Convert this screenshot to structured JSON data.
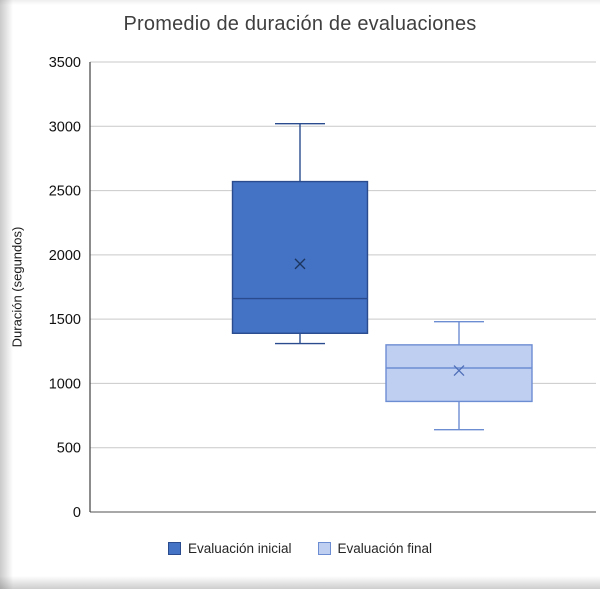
{
  "chart_data": {
    "type": "boxplot",
    "title": "Promedio de duración de evaluaciones",
    "ylabel": "Duración (segundos)",
    "ylim": [
      0,
      3500
    ],
    "ytick_step": 500,
    "grid": true,
    "legend_position": "bottom",
    "series": [
      {
        "name": "Evaluación inicial",
        "min": 1310,
        "q1": 1390,
        "median": 1660,
        "mean": 1930,
        "q3": 2570,
        "max": 3020,
        "fill": "#4472C4",
        "stroke": "#2A4C8F",
        "marker": "#1C355F"
      },
      {
        "name": "Evaluación final",
        "min": 640,
        "q1": 860,
        "median": 1120,
        "mean": 1100,
        "q3": 1300,
        "max": 1480,
        "fill": "#BFCFF2",
        "stroke": "#6D8DD3",
        "marker": "#4F6FB8"
      }
    ]
  }
}
